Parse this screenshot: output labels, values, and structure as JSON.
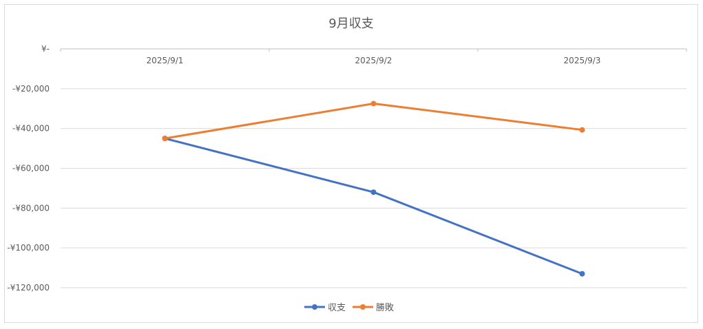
{
  "chart_data": {
    "type": "line",
    "title": "9月収支",
    "categories": [
      "2025/9/1",
      "2025/9/2",
      "2025/9/3"
    ],
    "series": [
      {
        "name": "収支",
        "values": [
          -45000,
          -72000,
          -113000
        ],
        "color": "#4472c4"
      },
      {
        "name": "勝敗",
        "values": [
          -45000,
          -27500,
          -40700
        ],
        "color": "#ed7d31"
      }
    ],
    "ylim": [
      -120000,
      0
    ],
    "y_ticks": [
      0,
      -20000,
      -40000,
      -60000,
      -80000,
      -100000,
      -120000
    ],
    "y_tick_labels": [
      "¥-",
      "-¥20,000",
      "-¥40,000",
      "-¥60,000",
      "-¥80,000",
      "-¥100,000",
      "-¥120,000"
    ],
    "grid": true,
    "legend_position": "bottom"
  }
}
